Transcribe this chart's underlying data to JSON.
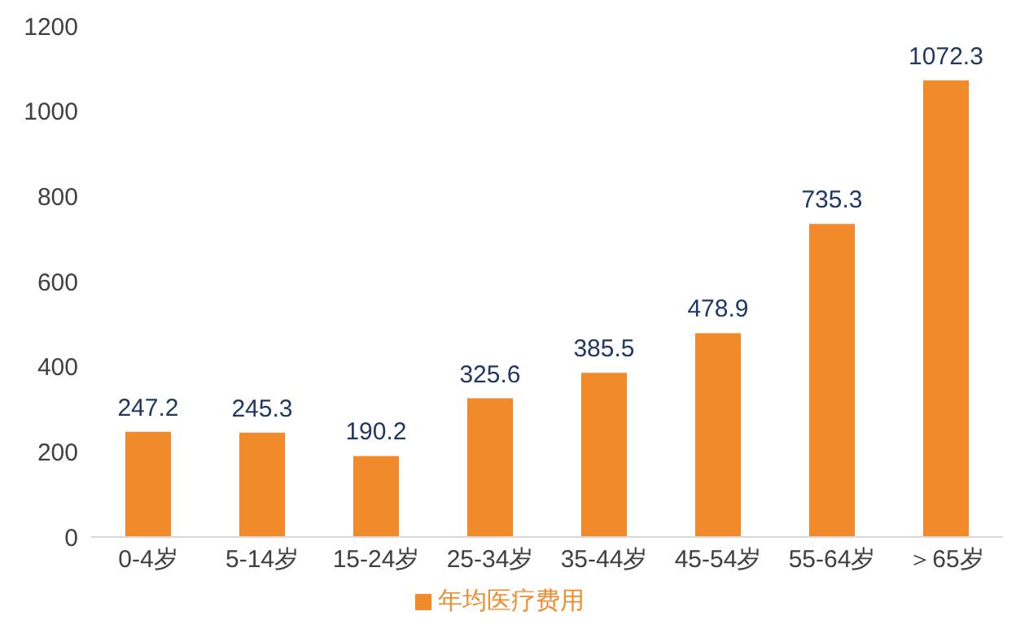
{
  "chart_data": {
    "type": "bar",
    "categories": [
      "0-4岁",
      "5-14岁",
      "15-24岁",
      "25-34岁",
      "35-44岁",
      "45-54岁",
      "55-64岁",
      "＞65岁"
    ],
    "series": [
      {
        "name": "年均医疗费用",
        "color": "#f08a2a",
        "values": [
          247.2,
          245.3,
          190.2,
          325.6,
          385.5,
          478.9,
          735.3,
          1072.3
        ]
      }
    ],
    "ylim": [
      0,
      1200
    ],
    "yticks": [
      0,
      200,
      400,
      600,
      800,
      1000,
      1200
    ],
    "grid": false,
    "legend": "bottom",
    "data_labels": true
  }
}
